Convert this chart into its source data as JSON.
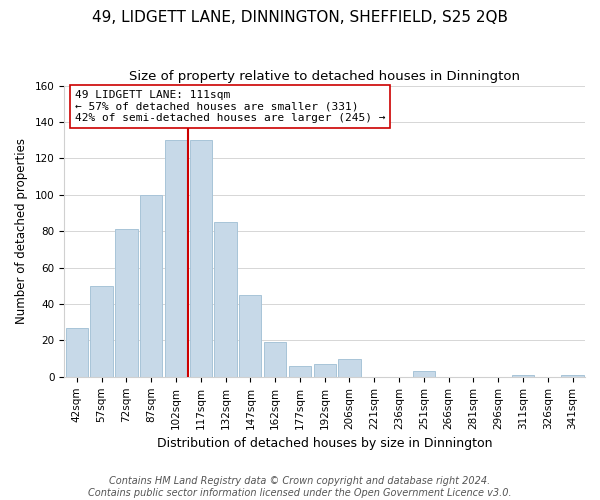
{
  "title": "49, LIDGETT LANE, DINNINGTON, SHEFFIELD, S25 2QB",
  "subtitle": "Size of property relative to detached houses in Dinnington",
  "xlabel": "Distribution of detached houses by size in Dinnington",
  "ylabel": "Number of detached properties",
  "bar_labels": [
    "42sqm",
    "57sqm",
    "72sqm",
    "87sqm",
    "102sqm",
    "117sqm",
    "132sqm",
    "147sqm",
    "162sqm",
    "177sqm",
    "192sqm",
    "206sqm",
    "221sqm",
    "236sqm",
    "251sqm",
    "266sqm",
    "281sqm",
    "296sqm",
    "311sqm",
    "326sqm",
    "341sqm"
  ],
  "bar_values": [
    27,
    50,
    81,
    100,
    130,
    130,
    85,
    45,
    19,
    6,
    7,
    10,
    0,
    0,
    3,
    0,
    0,
    0,
    1,
    0,
    1
  ],
  "bar_color": "#c7d9e8",
  "bar_edge_color": "#a8c4d8",
  "vline_color": "#cc0000",
  "annotation_line1": "49 LIDGETT LANE: 111sqm",
  "annotation_line2": "← 57% of detached houses are smaller (331)",
  "annotation_line3": "42% of semi-detached houses are larger (245) →",
  "annotation_box_color": "#ffffff",
  "annotation_box_edge": "#cc0000",
  "ylim": [
    0,
    160
  ],
  "yticks": [
    0,
    20,
    40,
    60,
    80,
    100,
    120,
    140,
    160
  ],
  "footnote1": "Contains HM Land Registry data © Crown copyright and database right 2024.",
  "footnote2": "Contains public sector information licensed under the Open Government Licence v3.0.",
  "title_fontsize": 11,
  "subtitle_fontsize": 9.5,
  "xlabel_fontsize": 9,
  "ylabel_fontsize": 8.5,
  "tick_fontsize": 7.5,
  "annotation_fontsize": 8,
  "footnote_fontsize": 7
}
